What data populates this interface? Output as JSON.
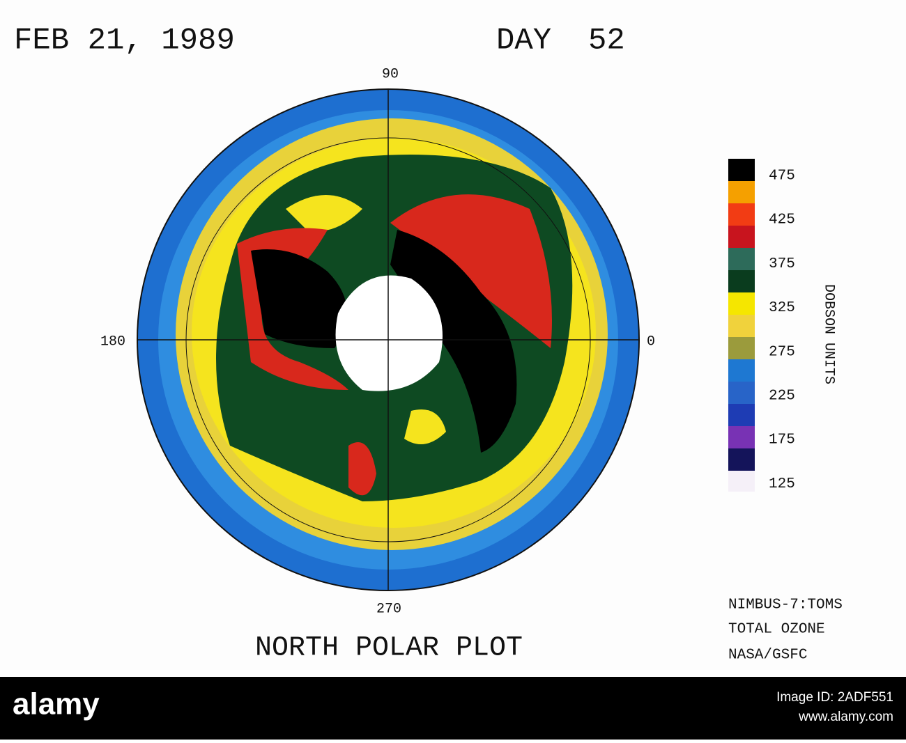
{
  "header": {
    "date": "FEB 21, 1989",
    "day": "DAY  52"
  },
  "map": {
    "title": "NORTH POLAR PLOT",
    "longitude_labels": {
      "top": "90",
      "left": "180",
      "right": "0",
      "bottom": "270"
    }
  },
  "legend": {
    "title": "DOBSON UNITS",
    "labels": [
      "475",
      "425",
      "375",
      "325",
      "275",
      "225",
      "175",
      "125"
    ]
  },
  "credits": [
    "NIMBUS-7:TOMS",
    "TOTAL OZONE",
    "NASA/GSFC"
  ],
  "watermark": {
    "brand": "alamy",
    "image_id": "Image ID: 2ADF551",
    "url": "www.alamy.com"
  }
}
